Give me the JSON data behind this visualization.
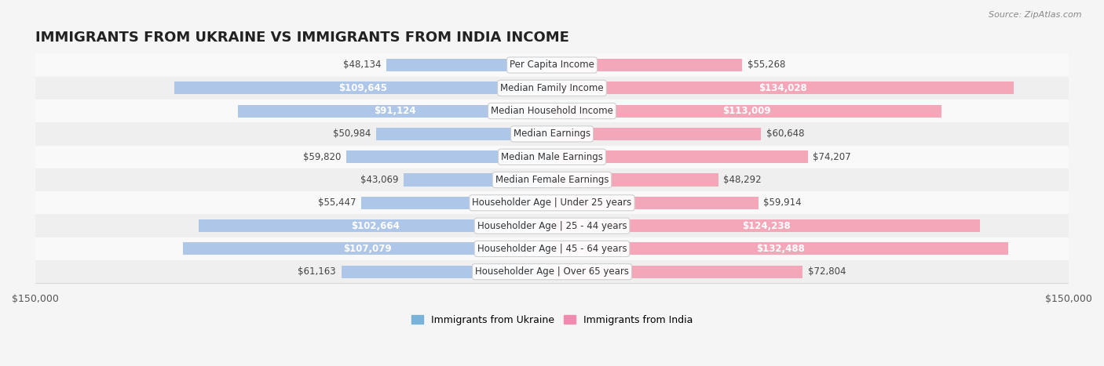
{
  "title": "IMMIGRANTS FROM UKRAINE VS IMMIGRANTS FROM INDIA INCOME",
  "source": "Source: ZipAtlas.com",
  "categories": [
    "Per Capita Income",
    "Median Family Income",
    "Median Household Income",
    "Median Earnings",
    "Median Male Earnings",
    "Median Female Earnings",
    "Householder Age | Under 25 years",
    "Householder Age | 25 - 44 years",
    "Householder Age | 45 - 64 years",
    "Householder Age | Over 65 years"
  ],
  "ukraine_values": [
    48134,
    109645,
    91124,
    50984,
    59820,
    43069,
    55447,
    102664,
    107079,
    61163
  ],
  "india_values": [
    55268,
    134028,
    113009,
    60648,
    74207,
    48292,
    59914,
    124238,
    132488,
    72804
  ],
  "ukraine_labels": [
    "$48,134",
    "$109,645",
    "$91,124",
    "$50,984",
    "$59,820",
    "$43,069",
    "$55,447",
    "$102,664",
    "$107,079",
    "$61,163"
  ],
  "india_labels": [
    "$55,268",
    "$134,028",
    "$113,009",
    "$60,648",
    "$74,207",
    "$48,292",
    "$59,914",
    "$124,238",
    "$132,488",
    "$72,804"
  ],
  "ukraine_color_bar": "#aec6e8",
  "india_color_bar": "#f4a7b9",
  "ukraine_color_dark": "#6baed6",
  "india_color_dark": "#f768a1",
  "ukraine_legend_color": "#7ab3d9",
  "india_legend_color": "#f08ab0",
  "label_bg": "#ffffff",
  "bar_height": 0.55,
  "max_value": 150000,
  "background_color": "#f5f5f5",
  "row_bg_light": "#f9f9f9",
  "row_bg_dark": "#efefef",
  "title_fontsize": 13,
  "label_fontsize": 8.5,
  "axis_fontsize": 9,
  "legend_fontsize": 9,
  "large_value_threshold": 80000
}
